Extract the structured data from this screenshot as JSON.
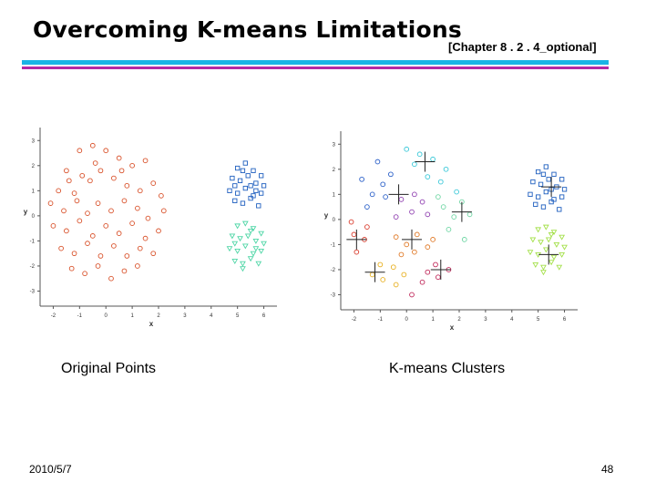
{
  "slide": {
    "title": "Overcoming K-means Limitations",
    "subtitle": "[Chapter 8 . 2 . 4_optional]",
    "date": "2010/5/7",
    "page_number": "48",
    "captions": {
      "left": "Original Points",
      "right": "K-means Clusters"
    },
    "colors": {
      "rule_top": "#19b4e6",
      "rule_bottom": "#b32aa5"
    }
  },
  "chart_data": [
    {
      "type": "scatter",
      "title": "",
      "xlabel": "x",
      "ylabel": "y",
      "xlim": [
        -2.5,
        6.5
      ],
      "ylim": [
        -3.6,
        3.3
      ],
      "xticks": [
        "-2",
        "-1",
        "0",
        "1",
        "2",
        "3",
        "4",
        "5",
        "6"
      ],
      "yticks": [
        "3",
        "2",
        "1",
        "0",
        "-1",
        "-2",
        "-3"
      ],
      "series": [
        {
          "color": "#d9522b",
          "marker": "circle",
          "points": [
            [
              -1.5,
              1.8
            ],
            [
              -1.0,
              2.6
            ],
            [
              -0.5,
              2.8
            ],
            [
              0,
              2.6
            ],
            [
              0.5,
              2.3
            ],
            [
              1.0,
              2.0
            ],
            [
              1.5,
              2.2
            ],
            [
              -1.8,
              1.0
            ],
            [
              -1.4,
              1.4
            ],
            [
              -0.9,
              1.6
            ],
            [
              -0.6,
              1.4
            ],
            [
              -0.2,
              1.8
            ],
            [
              0.3,
              1.5
            ],
            [
              0.8,
              1.2
            ],
            [
              1.3,
              1.0
            ],
            [
              1.8,
              1.3
            ],
            [
              2.1,
              0.8
            ],
            [
              -2.1,
              0.5
            ],
            [
              -1.6,
              0.2
            ],
            [
              -1.1,
              0.6
            ],
            [
              -0.7,
              0.1
            ],
            [
              -0.3,
              0.5
            ],
            [
              0.2,
              0.2
            ],
            [
              0.7,
              0.6
            ],
            [
              1.2,
              0.3
            ],
            [
              1.6,
              -0.1
            ],
            [
              2.2,
              0.2
            ],
            [
              -2.0,
              -0.4
            ],
            [
              -1.5,
              -0.6
            ],
            [
              -1.0,
              -0.2
            ],
            [
              -0.5,
              -0.8
            ],
            [
              0,
              -0.4
            ],
            [
              0.5,
              -0.7
            ],
            [
              1.0,
              -0.3
            ],
            [
              1.5,
              -0.9
            ],
            [
              2.0,
              -0.6
            ],
            [
              -1.7,
              -1.3
            ],
            [
              -1.2,
              -1.5
            ],
            [
              -0.7,
              -1.1
            ],
            [
              -0.2,
              -1.6
            ],
            [
              0.3,
              -1.2
            ],
            [
              0.8,
              -1.6
            ],
            [
              1.3,
              -1.3
            ],
            [
              1.8,
              -1.5
            ],
            [
              -1.3,
              -2.1
            ],
            [
              -0.8,
              -2.3
            ],
            [
              -0.3,
              -2.0
            ],
            [
              0.2,
              -2.5
            ],
            [
              0.7,
              -2.2
            ],
            [
              1.2,
              -2.0
            ],
            [
              -0.4,
              2.1
            ],
            [
              -1.2,
              0.9
            ],
            [
              0.6,
              1.8
            ]
          ]
        },
        {
          "color": "#1f5fbf",
          "marker": "square",
          "points": [
            [
              5.0,
              1.9
            ],
            [
              5.3,
              2.1
            ],
            [
              5.6,
              1.8
            ],
            [
              5.9,
              1.6
            ],
            [
              4.8,
              1.5
            ],
            [
              5.1,
              1.4
            ],
            [
              5.4,
              1.6
            ],
            [
              5.7,
              1.3
            ],
            [
              6.0,
              1.2
            ],
            [
              4.7,
              1.0
            ],
            [
              5.0,
              0.9
            ],
            [
              5.3,
              1.1
            ],
            [
              5.6,
              0.8
            ],
            [
              5.9,
              0.9
            ],
            [
              4.9,
              0.6
            ],
            [
              5.2,
              0.5
            ],
            [
              5.5,
              0.7
            ],
            [
              5.8,
              0.4
            ],
            [
              5.2,
              1.8
            ],
            [
              5.5,
              1.2
            ],
            [
              4.9,
              1.2
            ],
            [
              5.7,
              1.0
            ]
          ]
        },
        {
          "color": "#4fd6a6",
          "marker": "triangle",
          "points": [
            [
              5.0,
              -0.4
            ],
            [
              5.3,
              -0.3
            ],
            [
              5.6,
              -0.5
            ],
            [
              5.9,
              -0.7
            ],
            [
              4.8,
              -0.8
            ],
            [
              5.1,
              -0.9
            ],
            [
              5.4,
              -0.8
            ],
            [
              5.7,
              -1.0
            ],
            [
              6.0,
              -1.1
            ],
            [
              4.7,
              -1.3
            ],
            [
              5.0,
              -1.4
            ],
            [
              5.3,
              -1.2
            ],
            [
              5.6,
              -1.5
            ],
            [
              5.9,
              -1.4
            ],
            [
              4.9,
              -1.8
            ],
            [
              5.2,
              -1.9
            ],
            [
              5.5,
              -1.7
            ],
            [
              5.8,
              -1.9
            ],
            [
              5.2,
              -2.1
            ],
            [
              5.5,
              -0.6
            ],
            [
              4.9,
              -1.1
            ],
            [
              5.7,
              -1.3
            ]
          ]
        }
      ]
    },
    {
      "type": "scatter",
      "title": "",
      "xlabel": "x",
      "ylabel": "y",
      "xlim": [
        -2.5,
        6.5
      ],
      "ylim": [
        -3.6,
        3.3
      ],
      "xticks": [
        "-2",
        "-1",
        "0",
        "1",
        "2",
        "3",
        "4",
        "5",
        "6"
      ],
      "yticks": [
        "3",
        "2",
        "1",
        "0",
        "-1",
        "-2",
        "-3"
      ],
      "series": [
        {
          "color": "#e8b020",
          "marker": "circle",
          "points": [
            [
              -1.3,
              -2.2
            ],
            [
              -0.9,
              -2.4
            ],
            [
              -0.5,
              -1.9
            ],
            [
              -0.1,
              -2.2
            ],
            [
              -1.0,
              -1.8
            ],
            [
              -0.4,
              -2.6
            ]
          ]
        },
        {
          "color": "#d93a2b",
          "marker": "circle",
          "points": [
            [
              -2.0,
              -0.6
            ],
            [
              -1.6,
              -0.8
            ],
            [
              -1.9,
              -1.3
            ],
            [
              -1.5,
              -0.3
            ],
            [
              -2.1,
              -0.1
            ]
          ]
        },
        {
          "color": "#c0285a",
          "marker": "circle",
          "points": [
            [
              0.8,
              -2.1
            ],
            [
              1.2,
              -2.3
            ],
            [
              1.6,
              -2.0
            ],
            [
              1.1,
              -1.8
            ],
            [
              0.6,
              -2.5
            ],
            [
              0.2,
              -3.0
            ]
          ]
        },
        {
          "color": "#e07a28",
          "marker": "circle",
          "points": [
            [
              -0.4,
              -0.7
            ],
            [
              0,
              -1.0
            ],
            [
              0.4,
              -0.6
            ],
            [
              0.8,
              -1.1
            ],
            [
              -0.2,
              -1.4
            ],
            [
              0.3,
              -1.3
            ],
            [
              1.0,
              -0.8
            ]
          ]
        },
        {
          "color": "#2a5fc8",
          "marker": "circle",
          "points": [
            [
              -1.7,
              1.6
            ],
            [
              -1.3,
              1.0
            ],
            [
              -0.9,
              1.4
            ],
            [
              -1.5,
              0.5
            ],
            [
              -0.8,
              0.9
            ],
            [
              -1.1,
              2.3
            ],
            [
              -0.6,
              1.8
            ]
          ]
        },
        {
          "color": "#8f3fb0",
          "marker": "circle",
          "points": [
            [
              -0.2,
              0.8
            ],
            [
              0.2,
              0.3
            ],
            [
              0.6,
              0.7
            ],
            [
              -0.4,
              0.1
            ],
            [
              0.3,
              1.0
            ],
            [
              0.8,
              0.2
            ]
          ]
        },
        {
          "color": "#3ac8d8",
          "marker": "circle",
          "points": [
            [
              0,
              2.8
            ],
            [
              0.5,
              2.6
            ],
            [
              1.0,
              2.4
            ],
            [
              1.5,
              2.0
            ],
            [
              0.8,
              1.7
            ],
            [
              0.3,
              2.2
            ],
            [
              1.3,
              1.5
            ],
            [
              1.9,
              1.1
            ]
          ]
        },
        {
          "color": "#6fd6a4",
          "marker": "circle",
          "points": [
            [
              1.4,
              0.5
            ],
            [
              1.8,
              0.1
            ],
            [
              2.1,
              0.7
            ],
            [
              1.6,
              -0.4
            ],
            [
              2.2,
              -0.8
            ],
            [
              1.2,
              0.9
            ],
            [
              2.4,
              0.2
            ]
          ]
        },
        {
          "color": "#1f5fbf",
          "marker": "square",
          "points": [
            [
              5.0,
              1.9
            ],
            [
              5.3,
              2.1
            ],
            [
              5.6,
              1.8
            ],
            [
              5.9,
              1.6
            ],
            [
              4.8,
              1.5
            ],
            [
              5.1,
              1.4
            ],
            [
              5.4,
              1.6
            ],
            [
              5.7,
              1.3
            ],
            [
              6.0,
              1.2
            ],
            [
              4.7,
              1.0
            ],
            [
              5.0,
              0.9
            ],
            [
              5.3,
              1.1
            ],
            [
              5.6,
              0.8
            ],
            [
              5.9,
              0.9
            ],
            [
              4.9,
              0.6
            ],
            [
              5.2,
              0.5
            ],
            [
              5.5,
              0.7
            ],
            [
              5.8,
              0.4
            ],
            [
              5.2,
              1.8
            ],
            [
              5.5,
              1.2
            ]
          ]
        },
        {
          "color": "#a4e04a",
          "marker": "triangle",
          "points": [
            [
              5.0,
              -0.4
            ],
            [
              5.3,
              -0.3
            ],
            [
              5.6,
              -0.5
            ],
            [
              5.9,
              -0.7
            ],
            [
              4.8,
              -0.8
            ],
            [
              5.1,
              -0.9
            ],
            [
              5.4,
              -0.8
            ],
            [
              5.7,
              -1.0
            ],
            [
              6.0,
              -1.1
            ],
            [
              4.7,
              -1.3
            ],
            [
              5.0,
              -1.4
            ],
            [
              5.3,
              -1.2
            ],
            [
              5.6,
              -1.5
            ],
            [
              5.9,
              -1.4
            ],
            [
              4.9,
              -1.8
            ],
            [
              5.2,
              -1.9
            ],
            [
              5.5,
              -1.7
            ],
            [
              5.8,
              -1.9
            ],
            [
              5.2,
              -2.1
            ],
            [
              5.5,
              -0.6
            ]
          ]
        }
      ],
      "centroids": [
        [
          0.7,
          2.3
        ],
        [
          -0.3,
          1.0
        ],
        [
          2.1,
          0.3
        ],
        [
          -1.9,
          -0.8
        ],
        [
          0.2,
          -0.8
        ],
        [
          -1.2,
          -2.1
        ],
        [
          1.3,
          -2.0
        ],
        [
          5.5,
          1.3
        ],
        [
          5.4,
          -1.4
        ]
      ]
    }
  ]
}
